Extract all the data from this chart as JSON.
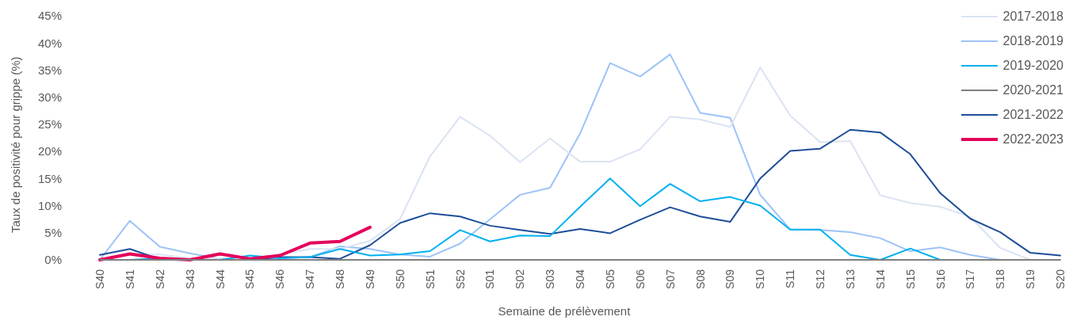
{
  "chart_data": {
    "type": "line",
    "xlabel": "Semaine de prélèvement",
    "ylabel": "Taux de positivité pour grippe (%)",
    "categories": [
      "S40",
      "S41",
      "S42",
      "S43",
      "S44",
      "S45",
      "S46",
      "S47",
      "S48",
      "S49",
      "S50",
      "S51",
      "S52",
      "S01",
      "S02",
      "S03",
      "S04",
      "S05",
      "S06",
      "S07",
      "S08",
      "S09",
      "S10",
      "S11",
      "S12",
      "S13",
      "S14",
      "S15",
      "S16",
      "S17",
      "S18",
      "S19",
      "S20"
    ],
    "ylim": [
      0,
      45
    ],
    "yticks": [
      {
        "value": 0,
        "label": "0%"
      },
      {
        "value": 5,
        "label": "5%"
      },
      {
        "value": 10,
        "label": "10%"
      },
      {
        "value": 15,
        "label": "15%"
      },
      {
        "value": 20,
        "label": "20%"
      },
      {
        "value": 25,
        "label": "25%"
      },
      {
        "value": 30,
        "label": "30%"
      },
      {
        "value": 35,
        "label": "35%"
      },
      {
        "value": 40,
        "label": "40%"
      },
      {
        "value": 45,
        "label": "45%"
      }
    ],
    "legend": "top right",
    "series": [
      {
        "name": "2017-2018",
        "color": "#dae3f3",
        "values": [
          0,
          1,
          1,
          0.3,
          0.3,
          0.3,
          1,
          2,
          2,
          3.5,
          7.5,
          19.1,
          26.4,
          22.9,
          18,
          22.4,
          18.1,
          18.1,
          20.4,
          26.4,
          25.9,
          24.5,
          35.5,
          26.6,
          21.7,
          21.9,
          11.9,
          10.5,
          9.8,
          7.9,
          2.2,
          0,
          null
        ]
      },
      {
        "name": "2018-2019",
        "color": "#9dc3f7",
        "values": [
          0,
          7.2,
          2.4,
          1.2,
          0.2,
          0.2,
          0.3,
          0.5,
          2.5,
          2,
          1,
          0.6,
          3,
          7.5,
          12,
          13.3,
          23.3,
          36.3,
          33.8,
          37.9,
          27.1,
          26.2,
          12,
          5.6,
          5.5,
          5.1,
          4,
          1.6,
          2.3,
          0.9,
          0,
          null,
          null
        ]
      },
      {
        "name": "2019-2020",
        "color": "#00b0f0",
        "values": [
          0,
          0,
          0.3,
          0,
          0,
          0.8,
          0.3,
          0.5,
          2,
          0.8,
          1,
          1.6,
          5.5,
          3.4,
          4.5,
          4.4,
          9.8,
          15,
          9.9,
          14,
          10.8,
          11.6,
          10,
          5.6,
          5.6,
          0.9,
          0,
          2.1,
          0,
          null,
          null,
          null,
          null
        ]
      },
      {
        "name": "2020-2021",
        "color": "#7f7f7f",
        "values": [
          0,
          0,
          0,
          0,
          0,
          0,
          0,
          0,
          0,
          0,
          0,
          0,
          0,
          0,
          0,
          0,
          0,
          0,
          0,
          0,
          0,
          0,
          0,
          0,
          0,
          0,
          0,
          0,
          0,
          0,
          0,
          0,
          0
        ]
      },
      {
        "name": "2021-2022",
        "color": "#1f4e99",
        "values": [
          0.9,
          2,
          0.1,
          0,
          0,
          0,
          0.5,
          0.5,
          0.2,
          2.7,
          6.8,
          8.6,
          8,
          6.3,
          5.5,
          4.8,
          5.7,
          4.9,
          7.4,
          9.7,
          8,
          7,
          15,
          20.1,
          20.5,
          24,
          23.5,
          19.5,
          12.3,
          7.6,
          5.1,
          1.3,
          0.8
        ]
      },
      {
        "name": "2022-2023",
        "color": "#e4005a",
        "values": [
          0,
          1.1,
          0.3,
          0,
          1.1,
          0.2,
          0.8,
          3.1,
          3.4,
          6,
          null,
          null,
          null,
          null,
          null,
          null,
          null,
          null,
          null,
          null,
          null,
          null,
          null,
          null,
          null,
          null,
          null,
          null,
          null,
          null,
          null,
          null,
          null
        ]
      }
    ]
  }
}
